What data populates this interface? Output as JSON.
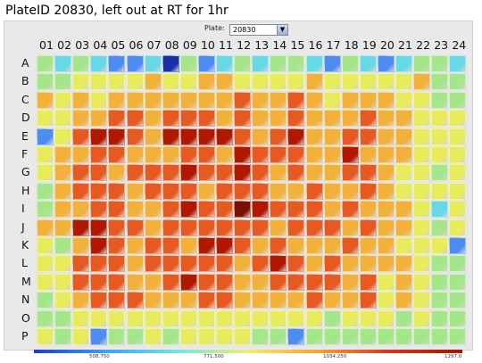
{
  "title": "PlateID 20830, left out at RT for 1hr",
  "plate_selector": {
    "label": "Plate:",
    "value": "20830",
    "arrow_icon": "chevron-down-icon"
  },
  "columns": [
    "01",
    "02",
    "03",
    "04",
    "05",
    "06",
    "07",
    "08",
    "09",
    "10",
    "11",
    "12",
    "13",
    "14",
    "15",
    "16",
    "17",
    "18",
    "19",
    "20",
    "21",
    "22",
    "23",
    "24"
  ],
  "rows": [
    "A",
    "B",
    "C",
    "D",
    "E",
    "F",
    "G",
    "H",
    "I",
    "J",
    "K",
    "L",
    "M",
    "N",
    "O",
    "P"
  ],
  "scale": {
    "ticks": [
      "508.750",
      "771.500",
      "1034.250",
      "1297.0"
    ],
    "colors": [
      "#1e3cc0",
      "#3aa0ff",
      "#6ee8e0",
      "#f2ee6a",
      "#f6a032",
      "#d4351a",
      "#9a1a00"
    ]
  },
  "levels": [
    [
      3,
      2,
      3,
      2,
      1,
      1,
      2,
      0,
      3,
      1,
      2,
      3,
      2,
      3,
      3,
      2,
      1,
      3,
      2,
      1,
      2,
      3,
      3,
      2
    ],
    [
      3,
      3,
      4,
      4,
      4,
      4,
      5,
      4,
      4,
      5,
      5,
      4,
      4,
      4,
      4,
      5,
      4,
      4,
      4,
      4,
      4,
      5,
      3,
      3
    ],
    [
      5,
      4,
      5,
      4,
      5,
      5,
      5,
      5,
      5,
      5,
      5,
      6,
      5,
      5,
      6,
      5,
      4,
      5,
      5,
      5,
      4,
      4,
      3,
      3
    ],
    [
      4,
      4,
      5,
      5,
      6,
      6,
      5,
      6,
      6,
      6,
      5,
      6,
      5,
      5,
      6,
      5,
      5,
      5,
      6,
      5,
      5,
      4,
      4,
      4
    ],
    [
      1,
      4,
      6,
      7,
      7,
      6,
      5,
      7,
      7,
      7,
      7,
      6,
      5,
      6,
      7,
      5,
      5,
      6,
      6,
      5,
      5,
      4,
      4,
      4
    ],
    [
      4,
      5,
      5,
      6,
      6,
      5,
      5,
      5,
      6,
      6,
      5,
      7,
      6,
      6,
      6,
      5,
      5,
      7,
      5,
      5,
      5,
      4,
      4,
      4
    ],
    [
      4,
      5,
      6,
      6,
      5,
      6,
      6,
      6,
      7,
      6,
      6,
      7,
      6,
      5,
      6,
      5,
      5,
      6,
      6,
      5,
      4,
      4,
      3,
      4
    ],
    [
      3,
      5,
      6,
      6,
      6,
      5,
      6,
      6,
      6,
      5,
      6,
      6,
      6,
      5,
      5,
      6,
      5,
      5,
      6,
      5,
      4,
      4,
      4,
      4
    ],
    [
      3,
      5,
      5,
      6,
      6,
      5,
      5,
      6,
      7,
      6,
      6,
      8,
      7,
      6,
      6,
      6,
      5,
      6,
      5,
      5,
      5,
      4,
      2,
      4
    ],
    [
      5,
      5,
      7,
      7,
      6,
      6,
      5,
      6,
      6,
      6,
      6,
      6,
      6,
      5,
      6,
      6,
      6,
      5,
      6,
      5,
      5,
      4,
      3,
      4
    ],
    [
      4,
      3,
      5,
      7,
      6,
      5,
      6,
      6,
      5,
      7,
      7,
      6,
      5,
      6,
      5,
      5,
      5,
      6,
      5,
      5,
      4,
      4,
      4,
      1
    ],
    [
      4,
      4,
      6,
      6,
      6,
      5,
      6,
      6,
      6,
      6,
      6,
      5,
      6,
      7,
      6,
      5,
      6,
      5,
      5,
      5,
      5,
      4,
      3,
      3
    ],
    [
      4,
      4,
      6,
      6,
      6,
      5,
      5,
      6,
      7,
      6,
      6,
      5,
      5,
      6,
      6,
      6,
      6,
      5,
      6,
      4,
      5,
      4,
      3,
      3
    ],
    [
      3,
      4,
      5,
      6,
      6,
      6,
      5,
      5,
      5,
      6,
      6,
      5,
      5,
      5,
      5,
      6,
      5,
      5,
      6,
      4,
      5,
      4,
      3,
      3
    ],
    [
      3,
      3,
      4,
      4,
      4,
      4,
      4,
      4,
      4,
      4,
      4,
      4,
      4,
      4,
      4,
      4,
      3,
      4,
      4,
      4,
      3,
      4,
      3,
      3
    ],
    [
      4,
      3,
      4,
      1,
      3,
      3,
      4,
      3,
      4,
      4,
      4,
      4,
      3,
      3,
      1,
      3,
      3,
      3,
      3,
      3,
      3,
      3,
      3,
      3
    ]
  ]
}
